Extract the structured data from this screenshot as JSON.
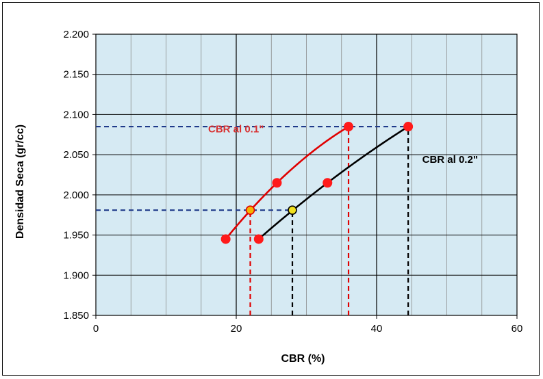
{
  "chart_data": {
    "type": "scatter",
    "xlabel": "CBR  (%)",
    "ylabel": "Densidad Seca (gr/cc)",
    "xlim": [
      0,
      60
    ],
    "ylim": [
      1.85,
      2.2
    ],
    "x_ticks": [
      0,
      20,
      40,
      60
    ],
    "x_tick_labels": [
      "0",
      "20",
      "40",
      "60"
    ],
    "x_minor_step": 5,
    "y_ticks": [
      1.85,
      1.9,
      1.95,
      2.0,
      2.05,
      2.1,
      2.15,
      2.2
    ],
    "y_tick_labels": [
      "1.850",
      "1.900",
      "1.950",
      "2.000",
      "2.050",
      "2.100",
      "2.150",
      "2.200"
    ],
    "grid": true,
    "plot_background": "#d6eaf3",
    "grid_minor_color": "#8a8a8a",
    "grid_major_color": "#000000",
    "series": [
      {
        "name": "CBR al 0.1\"",
        "color": "#e00000",
        "x": [
          18.5,
          25.8,
          36.0
        ],
        "y": [
          1.945,
          2.015,
          2.085
        ],
        "label_color": "#d83030"
      },
      {
        "name": "CBR al 0.2\"",
        "color": "#000000",
        "x": [
          23.2,
          33.0,
          44.5
        ],
        "y": [
          1.945,
          2.015,
          2.085
        ],
        "label_color": "#000000"
      }
    ],
    "special_points": [
      {
        "x": 22.0,
        "y": 1.981,
        "fill": "#f4b400",
        "stroke": "#e00000"
      },
      {
        "x": 28.0,
        "y": 1.981,
        "fill": "#f0e020",
        "stroke": "#000000"
      }
    ],
    "reference_lines": [
      {
        "orientation": "horizontal",
        "y": 2.085,
        "x_from": 0,
        "x_to": 44.5,
        "color": "#1f3a8a"
      },
      {
        "orientation": "horizontal",
        "y": 1.981,
        "x_from": 0,
        "x_to": 28.0,
        "color": "#1f3a8a"
      },
      {
        "orientation": "vertical",
        "x": 22.0,
        "y_from": 1.85,
        "y_to": 1.981,
        "color": "#e00000"
      },
      {
        "orientation": "vertical",
        "x": 36.0,
        "y_from": 1.85,
        "y_to": 2.085,
        "color": "#e00000"
      },
      {
        "orientation": "vertical",
        "x": 28.0,
        "y_from": 1.85,
        "y_to": 1.981,
        "color": "#000000"
      },
      {
        "orientation": "vertical",
        "x": 44.5,
        "y_from": 1.85,
        "y_to": 2.085,
        "color": "#000000"
      }
    ],
    "annotations": [
      {
        "text": "CBR al 0.1\"",
        "x": 16,
        "y": 2.078,
        "color": "#d83030"
      },
      {
        "text": "CBR al 0.2\"",
        "x": 46.5,
        "y": 2.04,
        "color": "#000000"
      }
    ]
  }
}
